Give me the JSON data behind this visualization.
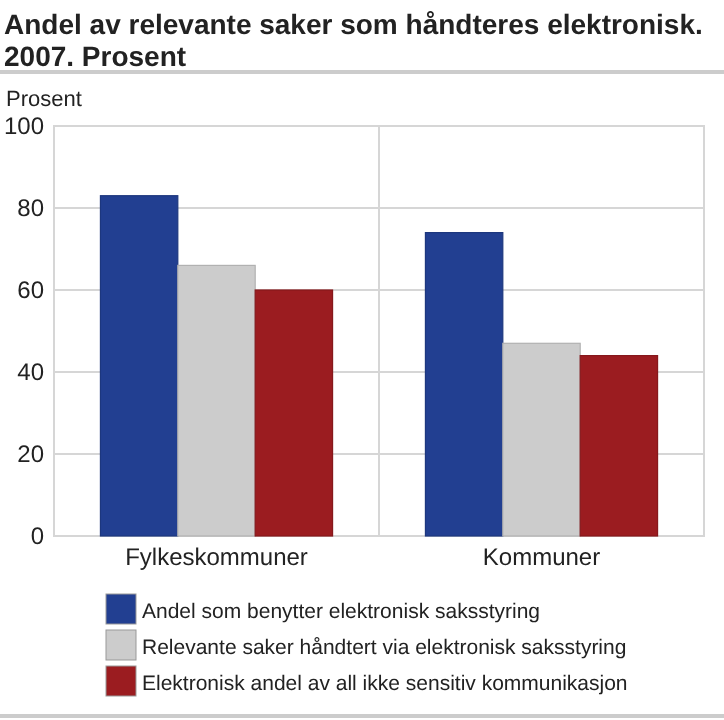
{
  "chart_data": {
    "type": "bar",
    "title": "Andel av relevante saker som håndteres elektronisk. 2007. Prosent",
    "ylabel": "Prosent",
    "categories": [
      "Fylkeskommuner",
      "Kommuner"
    ],
    "series": [
      {
        "name": "Andel som benytter elektronisk saksstyring",
        "color": "#223f91",
        "values": [
          83,
          74
        ]
      },
      {
        "name": "Relevante saker håndtert via elektronisk saksstyring",
        "color": "#cccccc",
        "values": [
          66,
          47
        ]
      },
      {
        "name": "Elektronisk andel av all ikke sensitiv kommunikasjon",
        "color": "#9b1c20",
        "values": [
          60,
          44
        ]
      }
    ],
    "ylim": [
      0,
      100
    ],
    "yticks": [
      0,
      20,
      40,
      60,
      80,
      100
    ],
    "grid": true,
    "legend": "bottom"
  }
}
